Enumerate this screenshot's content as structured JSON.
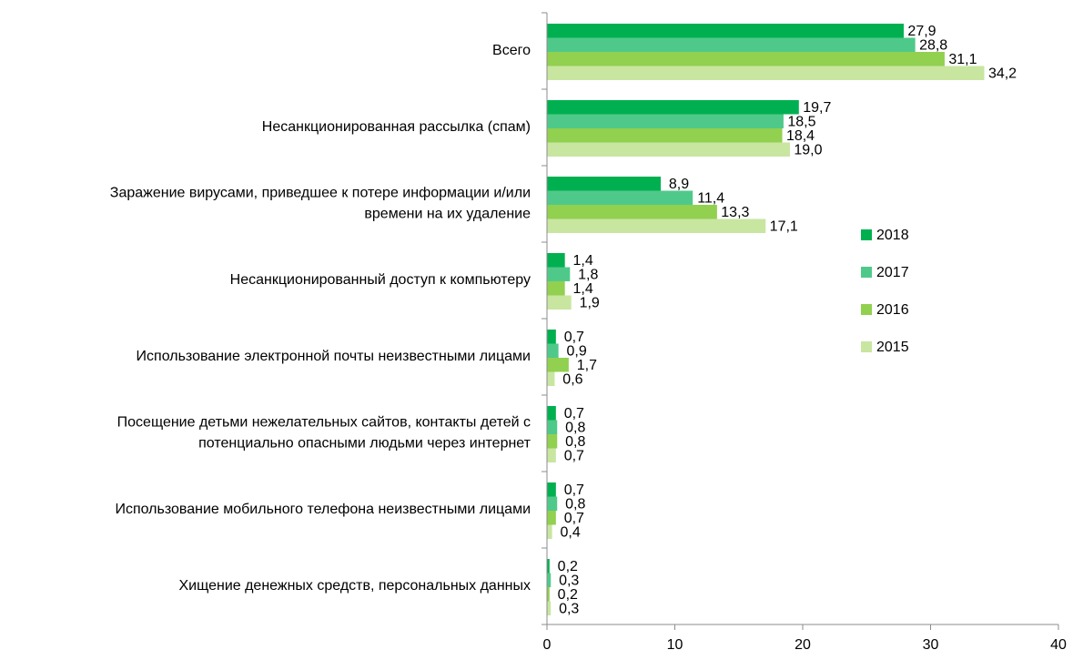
{
  "chart_data": {
    "type": "bar",
    "orientation": "horizontal",
    "categories": [
      [
        "Всего"
      ],
      [
        "Несанкционированная рассылка (спам)"
      ],
      [
        "Заражение вирусами, приведшее к потере информации и/или",
        "времени на их удаление"
      ],
      [
        "Несанкционированный доступ к компьютеру"
      ],
      [
        "Использование электронной почты неизвестными лицами"
      ],
      [
        "Посещение детьми нежелательных сайтов, контакты детей с",
        "потенциально опасными людьми через  интернет"
      ],
      [
        "Использование мобильного телефона неизвестными лицами"
      ],
      [
        "Хищение денежных средств, персональных данных"
      ]
    ],
    "series": [
      {
        "name": "2018",
        "color": "#00b050",
        "values": [
          27.9,
          19.7,
          8.9,
          1.4,
          0.7,
          0.7,
          0.7,
          0.2
        ],
        "labels": [
          "27,9",
          "19,7",
          "8,9",
          "1,4",
          "0,7",
          "0,7",
          "0,7",
          "0,2"
        ]
      },
      {
        "name": "2017",
        "color": "#4fc98a",
        "values": [
          28.8,
          18.5,
          11.4,
          1.8,
          0.9,
          0.8,
          0.8,
          0.3
        ],
        "labels": [
          "28,8",
          "18,5",
          "11,4",
          "1,8",
          "0,9",
          "0,8",
          "0,8",
          "0,3"
        ]
      },
      {
        "name": "2016",
        "color": "#92d050",
        "values": [
          31.1,
          18.4,
          13.3,
          1.4,
          1.7,
          0.8,
          0.7,
          0.2
        ],
        "labels": [
          "31,1",
          "18,4",
          "13,3",
          "1,4",
          "1,7",
          "0,8",
          "0,7",
          "0,2"
        ]
      },
      {
        "name": "2015",
        "color": "#c8e6a0",
        "values": [
          34.2,
          19.0,
          17.1,
          1.9,
          0.6,
          0.7,
          0.4,
          0.3
        ],
        "labels": [
          "34,2",
          "19,0",
          "17,1",
          "1,9",
          "0,6",
          "0,7",
          "0,4",
          "0,3"
        ]
      }
    ],
    "xlim": [
      0,
      40
    ],
    "xticks": [
      "0",
      "10",
      "20",
      "30",
      "40"
    ],
    "grid": false,
    "legend": "right"
  }
}
